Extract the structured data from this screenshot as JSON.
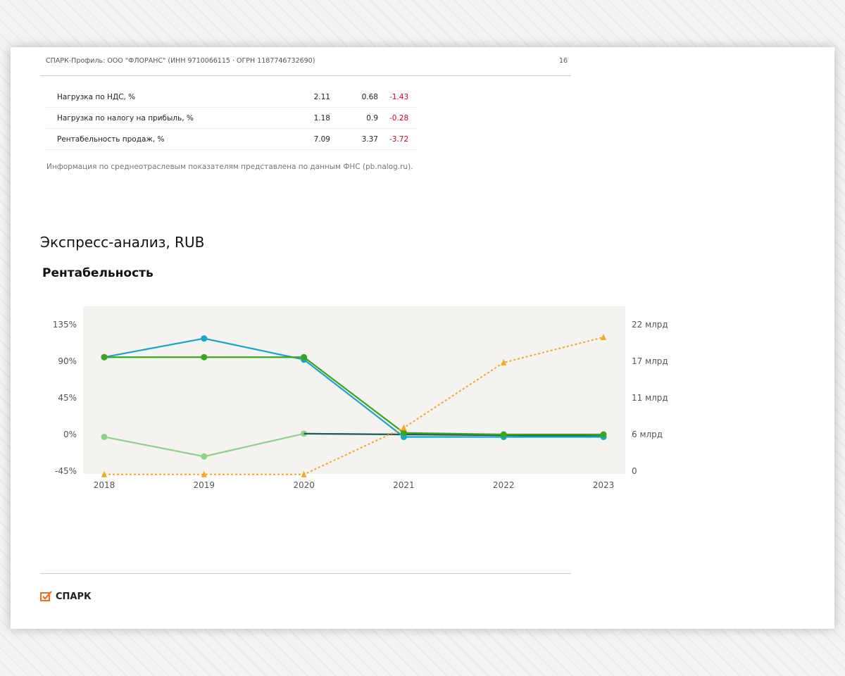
{
  "header": {
    "title": "СПАРК-Профиль: ООО \"ФЛОРАНС\" (ИНН 9710066115 · ОГРН 1187746732690)",
    "page_number": "16"
  },
  "table": {
    "rows": [
      {
        "label": "Нагрузка по НДС, %",
        "v1": "2.11",
        "v2": "0.68",
        "diff": "-1.43"
      },
      {
        "label": "Нагрузка по налогу на прибыль, %",
        "v1": "1.18",
        "v2": "0.9",
        "diff": "-0.28"
      },
      {
        "label": "Рентабельность продаж, %",
        "v1": "7.09",
        "v2": "3.37",
        "diff": "-3.72"
      }
    ]
  },
  "note": "Информация по среднеотраслевым показателям представлена по данным ФНС (pb.nalog.ru).",
  "section_title": "Экспресс-анализ, RUB",
  "chart_title": "Рентабельность",
  "logo": {
    "text": "СПАРК",
    "color": "#f26f21"
  },
  "chart_data": {
    "type": "line",
    "x": [
      "2018",
      "2019",
      "2020",
      "2021",
      "2022",
      "2023"
    ],
    "y_left": {
      "ticks": [
        "135%",
        "90%",
        "45%",
        "0%",
        "-45%"
      ],
      "range": [
        -45,
        135
      ]
    },
    "y_right": {
      "ticks": [
        "22 млрд",
        "17 млрд",
        "11 млрд",
        "6 млрд",
        "0"
      ],
      "range": [
        0,
        22
      ]
    },
    "background": "#f4f3ef",
    "series": [
      {
        "axis": "left",
        "color": "#8fd18a",
        "values": [
          -3,
          -27,
          1,
          0,
          0,
          0
        ],
        "style": "solid"
      },
      {
        "axis": "left",
        "color": "#1a5e63",
        "values": [
          null,
          null,
          1,
          0,
          -1,
          -2
        ],
        "style": "solid"
      },
      {
        "axis": "left",
        "color": "#1ba3c9",
        "values": [
          95,
          118,
          92,
          -3,
          -3,
          -3
        ],
        "style": "solid"
      },
      {
        "axis": "left",
        "color": "#3aa51f",
        "values": [
          95,
          95,
          95,
          2,
          0,
          0
        ],
        "style": "solid"
      },
      {
        "axis": "right",
        "color": "#f5a623",
        "values": [
          -0.5,
          -0.5,
          -0.5,
          6.5,
          16.3,
          20.1
        ],
        "style": "dotted"
      }
    ]
  }
}
